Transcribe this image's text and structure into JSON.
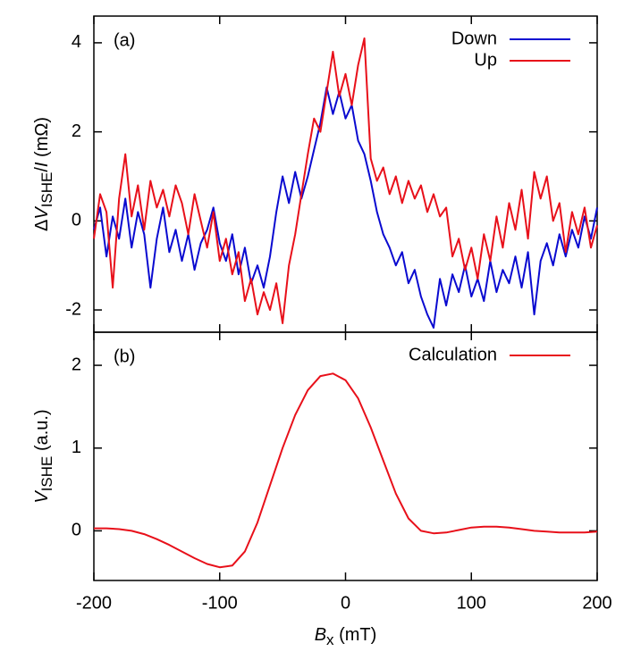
{
  "chart_data": [
    {
      "type": "line",
      "annotation": "(a)",
      "ylabel": [
        "Δ",
        "V",
        "ISHE",
        "/",
        "I",
        " (mΩ)"
      ],
      "x": [
        -200,
        -195,
        -190,
        -185,
        -180,
        -175,
        -170,
        -165,
        -160,
        -155,
        -150,
        -145,
        -140,
        -135,
        -130,
        -125,
        -120,
        -115,
        -110,
        -105,
        -100,
        -95,
        -90,
        -85,
        -80,
        -75,
        -70,
        -65,
        -60,
        -55,
        -50,
        -45,
        -40,
        -35,
        -30,
        -25,
        -20,
        -15,
        -10,
        -5,
        0,
        5,
        10,
        15,
        20,
        25,
        30,
        35,
        40,
        45,
        50,
        55,
        60,
        65,
        70,
        75,
        80,
        85,
        90,
        95,
        100,
        105,
        110,
        115,
        120,
        125,
        130,
        135,
        140,
        145,
        150,
        155,
        160,
        165,
        170,
        175,
        180,
        185,
        190,
        195,
        200
      ],
      "series": [
        {
          "name": "Down",
          "color": "#0a0ad0",
          "values": [
            -0.2,
            0.3,
            -0.8,
            0.1,
            -0.4,
            0.5,
            -0.6,
            0.2,
            -0.3,
            -1.5,
            -0.4,
            0.3,
            -0.7,
            -0.2,
            -0.9,
            -0.3,
            -1.1,
            -0.5,
            -0.2,
            0.3,
            -0.5,
            -0.9,
            -0.3,
            -1.2,
            -0.6,
            -1.4,
            -1.0,
            -1.5,
            -0.8,
            0.2,
            1.0,
            0.4,
            1.1,
            0.5,
            1.0,
            1.6,
            2.2,
            3.0,
            2.4,
            2.9,
            2.3,
            2.6,
            1.8,
            1.5,
            0.9,
            0.2,
            -0.3,
            -0.6,
            -1.0,
            -0.7,
            -1.4,
            -1.1,
            -1.7,
            -2.1,
            -2.4,
            -1.3,
            -1.9,
            -1.2,
            -1.6,
            -1.0,
            -1.7,
            -1.3,
            -1.8,
            -0.9,
            -1.6,
            -1.1,
            -1.4,
            -0.8,
            -1.5,
            -0.7,
            -2.1,
            -0.9,
            -0.5,
            -1.0,
            -0.3,
            -0.8,
            -0.2,
            -0.6,
            0.1,
            -0.4,
            0.3
          ]
        },
        {
          "name": "Up",
          "color": "#e8101a",
          "values": [
            -0.4,
            0.6,
            0.2,
            -1.5,
            0.5,
            1.5,
            0.1,
            0.8,
            -0.2,
            0.9,
            0.3,
            0.7,
            0.1,
            0.8,
            0.4,
            -0.3,
            0.6,
            0.0,
            -0.6,
            0.2,
            -0.9,
            -0.4,
            -1.2,
            -0.7,
            -1.8,
            -1.3,
            -2.1,
            -1.6,
            -2.0,
            -1.4,
            -2.3,
            -1.0,
            -0.3,
            0.6,
            1.5,
            2.3,
            2.0,
            2.9,
            3.8,
            2.8,
            3.3,
            2.6,
            3.5,
            4.1,
            1.4,
            0.9,
            1.2,
            0.6,
            1.0,
            0.4,
            0.9,
            0.5,
            0.8,
            0.2,
            0.6,
            0.1,
            0.3,
            -0.8,
            -0.4,
            -1.1,
            -0.6,
            -1.3,
            -0.3,
            -0.9,
            0.1,
            -0.6,
            0.4,
            -0.2,
            0.7,
            -0.4,
            1.1,
            0.5,
            1.0,
            0.0,
            0.4,
            -0.7,
            0.2,
            -0.3,
            0.3,
            -0.6,
            -0.1
          ]
        }
      ],
      "xlim": [
        -200,
        200
      ],
      "xticks": [
        -200,
        -100,
        0,
        100,
        200
      ],
      "ylim": [
        -2.5,
        4.6
      ],
      "yticks": [
        -2,
        0,
        2,
        4
      ],
      "legend": "top-right"
    },
    {
      "type": "line",
      "annotation": "(b)",
      "ylabel": [
        "V",
        "ISHE",
        " (a.u.)"
      ],
      "xlabel": [
        "B",
        "x",
        " (mT)"
      ],
      "x": [
        -200,
        -190,
        -180,
        -170,
        -160,
        -150,
        -140,
        -130,
        -120,
        -110,
        -100,
        -90,
        -80,
        -70,
        -60,
        -50,
        -40,
        -30,
        -20,
        -10,
        0,
        10,
        20,
        30,
        40,
        50,
        60,
        70,
        80,
        90,
        100,
        110,
        120,
        130,
        140,
        150,
        160,
        170,
        180,
        190,
        200
      ],
      "series": [
        {
          "name": "Calculation",
          "color": "#e8101a",
          "values": [
            0.03,
            0.03,
            0.02,
            0.0,
            -0.04,
            -0.1,
            -0.17,
            -0.25,
            -0.33,
            -0.4,
            -0.44,
            -0.42,
            -0.25,
            0.1,
            0.55,
            1.0,
            1.4,
            1.7,
            1.87,
            1.9,
            1.82,
            1.6,
            1.25,
            0.85,
            0.45,
            0.15,
            0.0,
            -0.03,
            -0.02,
            0.01,
            0.04,
            0.05,
            0.05,
            0.04,
            0.02,
            0.0,
            -0.01,
            -0.02,
            -0.02,
            -0.02,
            -0.01
          ]
        }
      ],
      "xlim": [
        -200,
        200
      ],
      "xticks": [
        -200,
        -100,
        0,
        100,
        200
      ],
      "ylim": [
        -0.6,
        2.4
      ],
      "yticks": [
        0,
        1,
        2
      ],
      "legend": "top-right"
    }
  ]
}
